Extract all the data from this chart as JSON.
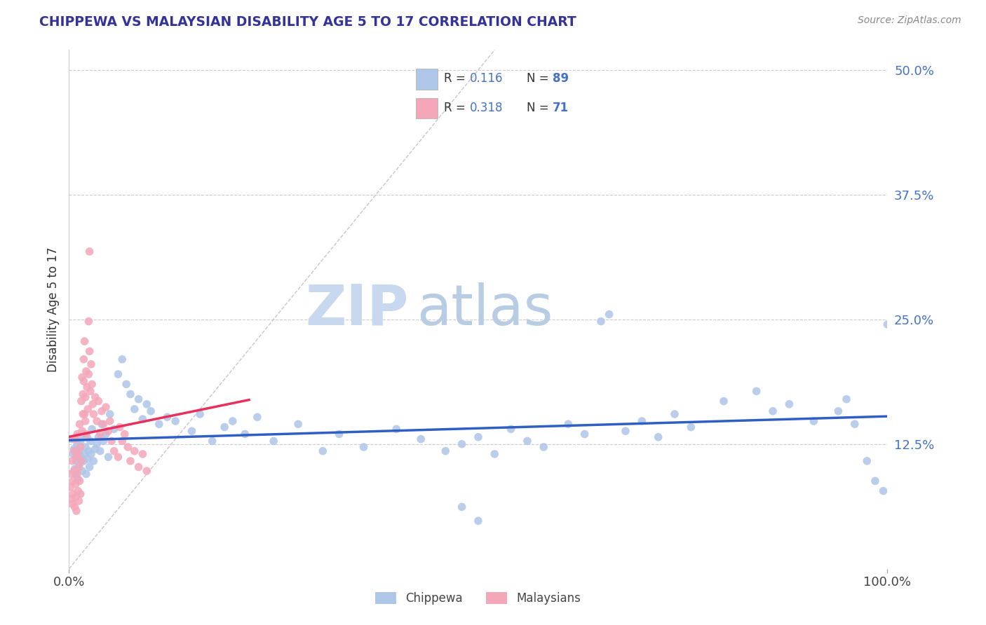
{
  "title": "CHIPPEWA VS MALAYSIAN DISABILITY AGE 5 TO 17 CORRELATION CHART",
  "source_text": "Source: ZipAtlas.com",
  "ylabel": "Disability Age 5 to 17",
  "yticks_labels": [
    "12.5%",
    "25.0%",
    "37.5%",
    "50.0%"
  ],
  "ytick_vals": [
    0.125,
    0.25,
    0.375,
    0.5
  ],
  "legend_label1": "Chippewa",
  "legend_label2": "Malaysians",
  "chippewa_color": "#aec6e8",
  "malaysian_color": "#f4a7b9",
  "chippewa_line_color": "#2f5fc4",
  "malaysian_line_color": "#e8305a",
  "diagonal_color": "#c0c0c0",
  "tick_label_color": "#4472c4",
  "R_color": "#4472c4",
  "chippewa_scatter": [
    [
      0.003,
      0.13
    ],
    [
      0.005,
      0.115
    ],
    [
      0.006,
      0.12
    ],
    [
      0.007,
      0.1
    ],
    [
      0.008,
      0.095
    ],
    [
      0.009,
      0.108
    ],
    [
      0.01,
      0.125
    ],
    [
      0.011,
      0.09
    ],
    [
      0.012,
      0.118
    ],
    [
      0.013,
      0.105
    ],
    [
      0.014,
      0.128
    ],
    [
      0.015,
      0.112
    ],
    [
      0.016,
      0.098
    ],
    [
      0.017,
      0.135
    ],
    [
      0.018,
      0.108
    ],
    [
      0.019,
      0.115
    ],
    [
      0.02,
      0.122
    ],
    [
      0.021,
      0.095
    ],
    [
      0.022,
      0.132
    ],
    [
      0.023,
      0.11
    ],
    [
      0.024,
      0.118
    ],
    [
      0.025,
      0.102
    ],
    [
      0.026,
      0.128
    ],
    [
      0.027,
      0.115
    ],
    [
      0.028,
      0.14
    ],
    [
      0.03,
      0.108
    ],
    [
      0.032,
      0.12
    ],
    [
      0.034,
      0.125
    ],
    [
      0.036,
      0.132
    ],
    [
      0.038,
      0.118
    ],
    [
      0.04,
      0.145
    ],
    [
      0.042,
      0.128
    ],
    [
      0.045,
      0.135
    ],
    [
      0.048,
      0.112
    ],
    [
      0.05,
      0.155
    ],
    [
      0.055,
      0.14
    ],
    [
      0.06,
      0.195
    ],
    [
      0.065,
      0.21
    ],
    [
      0.07,
      0.185
    ],
    [
      0.075,
      0.175
    ],
    [
      0.08,
      0.16
    ],
    [
      0.085,
      0.17
    ],
    [
      0.09,
      0.15
    ],
    [
      0.095,
      0.165
    ],
    [
      0.1,
      0.158
    ],
    [
      0.11,
      0.145
    ],
    [
      0.12,
      0.152
    ],
    [
      0.13,
      0.148
    ],
    [
      0.15,
      0.138
    ],
    [
      0.16,
      0.155
    ],
    [
      0.175,
      0.128
    ],
    [
      0.19,
      0.142
    ],
    [
      0.2,
      0.148
    ],
    [
      0.215,
      0.135
    ],
    [
      0.23,
      0.152
    ],
    [
      0.25,
      0.128
    ],
    [
      0.28,
      0.145
    ],
    [
      0.31,
      0.118
    ],
    [
      0.33,
      0.135
    ],
    [
      0.36,
      0.122
    ],
    [
      0.4,
      0.14
    ],
    [
      0.43,
      0.13
    ],
    [
      0.46,
      0.118
    ],
    [
      0.48,
      0.125
    ],
    [
      0.5,
      0.132
    ],
    [
      0.52,
      0.115
    ],
    [
      0.54,
      0.14
    ],
    [
      0.56,
      0.128
    ],
    [
      0.58,
      0.122
    ],
    [
      0.61,
      0.145
    ],
    [
      0.63,
      0.135
    ],
    [
      0.65,
      0.248
    ],
    [
      0.66,
      0.255
    ],
    [
      0.68,
      0.138
    ],
    [
      0.7,
      0.148
    ],
    [
      0.72,
      0.132
    ],
    [
      0.74,
      0.155
    ],
    [
      0.76,
      0.142
    ],
    [
      0.8,
      0.168
    ],
    [
      0.84,
      0.178
    ],
    [
      0.86,
      0.158
    ],
    [
      0.88,
      0.165
    ],
    [
      0.91,
      0.148
    ],
    [
      0.94,
      0.158
    ],
    [
      0.95,
      0.17
    ],
    [
      0.96,
      0.145
    ],
    [
      0.975,
      0.108
    ],
    [
      0.985,
      0.088
    ],
    [
      0.995,
      0.078
    ],
    [
      1.0,
      0.245
    ],
    [
      0.48,
      0.062
    ],
    [
      0.5,
      0.048
    ]
  ],
  "malaysian_scatter": [
    [
      0.002,
      0.082
    ],
    [
      0.003,
      0.07
    ],
    [
      0.003,
      0.095
    ],
    [
      0.004,
      0.065
    ],
    [
      0.004,
      0.108
    ],
    [
      0.005,
      0.088
    ],
    [
      0.005,
      0.075
    ],
    [
      0.006,
      0.118
    ],
    [
      0.006,
      0.098
    ],
    [
      0.007,
      0.062
    ],
    [
      0.007,
      0.13
    ],
    [
      0.008,
      0.085
    ],
    [
      0.008,
      0.072
    ],
    [
      0.009,
      0.112
    ],
    [
      0.009,
      0.058
    ],
    [
      0.01,
      0.095
    ],
    [
      0.01,
      0.135
    ],
    [
      0.011,
      0.078
    ],
    [
      0.011,
      0.115
    ],
    [
      0.012,
      0.102
    ],
    [
      0.012,
      0.068
    ],
    [
      0.013,
      0.145
    ],
    [
      0.013,
      0.088
    ],
    [
      0.014,
      0.122
    ],
    [
      0.014,
      0.075
    ],
    [
      0.015,
      0.168
    ],
    [
      0.015,
      0.108
    ],
    [
      0.016,
      0.192
    ],
    [
      0.016,
      0.138
    ],
    [
      0.017,
      0.175
    ],
    [
      0.017,
      0.155
    ],
    [
      0.018,
      0.21
    ],
    [
      0.018,
      0.188
    ],
    [
      0.019,
      0.228
    ],
    [
      0.019,
      0.155
    ],
    [
      0.02,
      0.172
    ],
    [
      0.02,
      0.148
    ],
    [
      0.021,
      0.198
    ],
    [
      0.021,
      0.135
    ],
    [
      0.022,
      0.182
    ],
    [
      0.023,
      0.16
    ],
    [
      0.024,
      0.248
    ],
    [
      0.024,
      0.195
    ],
    [
      0.025,
      0.318
    ],
    [
      0.025,
      0.218
    ],
    [
      0.026,
      0.178
    ],
    [
      0.027,
      0.205
    ],
    [
      0.028,
      0.185
    ],
    [
      0.029,
      0.165
    ],
    [
      0.03,
      0.155
    ],
    [
      0.032,
      0.172
    ],
    [
      0.034,
      0.148
    ],
    [
      0.036,
      0.168
    ],
    [
      0.038,
      0.135
    ],
    [
      0.04,
      0.158
    ],
    [
      0.042,
      0.145
    ],
    [
      0.045,
      0.162
    ],
    [
      0.048,
      0.138
    ],
    [
      0.05,
      0.148
    ],
    [
      0.052,
      0.128
    ],
    [
      0.055,
      0.118
    ],
    [
      0.06,
      0.112
    ],
    [
      0.062,
      0.142
    ],
    [
      0.065,
      0.128
    ],
    [
      0.068,
      0.135
    ],
    [
      0.072,
      0.122
    ],
    [
      0.075,
      0.108
    ],
    [
      0.08,
      0.118
    ],
    [
      0.085,
      0.102
    ],
    [
      0.09,
      0.115
    ],
    [
      0.095,
      0.098
    ]
  ],
  "xlim": [
    0.0,
    1.0
  ],
  "ylim": [
    0.0,
    0.52
  ],
  "background_color": "#ffffff",
  "grid_color": "#cccccc",
  "watermark_zip_color": "#c8d8ee",
  "watermark_atlas_color": "#b8cce4"
}
